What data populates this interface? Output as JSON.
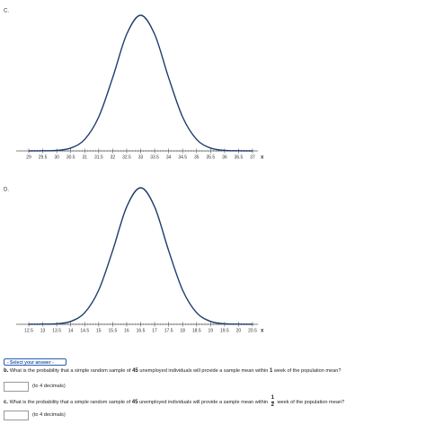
{
  "chart_data": [
    {
      "type": "line",
      "label": "C.",
      "x_label": "x",
      "color": "#1f3d6b",
      "x": [
        29,
        29.5,
        30,
        30.5,
        31,
        31.5,
        32,
        32.5,
        33,
        33.5,
        34,
        34.5,
        35,
        35.5,
        36,
        36.5,
        37
      ],
      "values": [
        0,
        0.001,
        0.004,
        0.021,
        0.085,
        0.25,
        0.54,
        0.86,
        1,
        0.86,
        0.54,
        0.25,
        0.085,
        0.021,
        0.004,
        0.001,
        0
      ],
      "xlim": [
        29,
        37
      ],
      "xticks": [
        29,
        29.5,
        30,
        30.5,
        31,
        31.5,
        32,
        32.5,
        33,
        33.5,
        34,
        34.5,
        35,
        35.5,
        36,
        36.5,
        37
      ]
    },
    {
      "type": "line",
      "label": "D.",
      "x_label": "x",
      "color": "#1f3d6b",
      "x": [
        12.5,
        13,
        13.5,
        14,
        14.5,
        15,
        15.5,
        16,
        16.5,
        17,
        17.5,
        18,
        18.5,
        19,
        19.5,
        20,
        20.5
      ],
      "values": [
        0,
        0.001,
        0.004,
        0.021,
        0.085,
        0.25,
        0.54,
        0.86,
        1,
        0.86,
        0.54,
        0.25,
        0.085,
        0.021,
        0.004,
        0.001,
        0
      ],
      "xlim": [
        12.5,
        20.5
      ],
      "xticks": [
        12.5,
        13,
        13.5,
        14,
        14.5,
        15,
        15.5,
        16,
        16.5,
        17,
        17.5,
        18,
        18.5,
        19,
        19.5,
        20,
        20.5
      ]
    }
  ],
  "dropdown": "- Select your answer -",
  "questions": [
    {
      "parts": [
        "b.",
        "What is the probability that a simple random sample of",
        "45",
        "unemployed individuals will provide a sample mean within",
        "1",
        "week of the population mean?"
      ],
      "hint": "(to 4 decimals)"
    },
    {
      "parts": [
        "c.",
        "What is the probability that a simple random sample of",
        "45",
        "unemployed individuals will provide a sample mean within",
        "1",
        "2",
        "week of the population mean?"
      ],
      "hint": "(to 4 decimals)"
    }
  ]
}
